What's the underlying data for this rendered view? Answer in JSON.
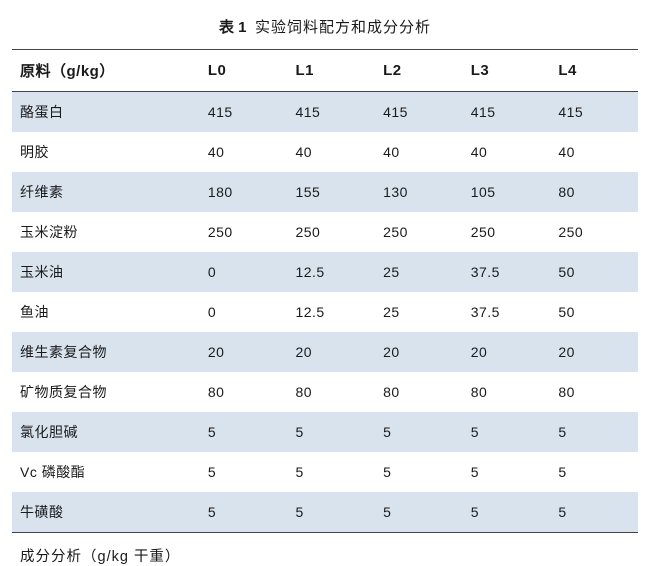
{
  "title": {
    "prefix": "表 1",
    "text": "实验饲料配方和成分分析"
  },
  "table": {
    "type": "table",
    "background_color": "#ffffff",
    "band_color": "#d9e3ee",
    "border_color": "#444444",
    "header_fontsize": 15,
    "cell_fontsize": 14,
    "columns": [
      "原料（g/kg）",
      "L0",
      "L1",
      "L2",
      "L3",
      "L4"
    ],
    "column_widths_pct": [
      30,
      14,
      14,
      14,
      14,
      14
    ],
    "rows": [
      [
        "酪蛋白",
        "415",
        "415",
        "415",
        "415",
        "415"
      ],
      [
        "明胶",
        "40",
        "40",
        "40",
        "40",
        "40"
      ],
      [
        "纤维素",
        "180",
        "155",
        "130",
        "105",
        "80"
      ],
      [
        "玉米淀粉",
        "250",
        "250",
        "250",
        "250",
        "250"
      ],
      [
        "玉米油",
        "0",
        "12.5",
        "25",
        "37.5",
        "50"
      ],
      [
        "鱼油",
        "0",
        "12.5",
        "25",
        "37.5",
        "50"
      ],
      [
        "维生素复合物",
        "20",
        "20",
        "20",
        "20",
        "20"
      ],
      [
        "矿物质复合物",
        "80",
        "80",
        "80",
        "80",
        "80"
      ],
      [
        "氯化胆碱",
        "5",
        "5",
        "5",
        "5",
        "5"
      ],
      [
        "Vc 磷酸酯",
        "5",
        "5",
        "5",
        "5",
        "5"
      ],
      [
        "牛磺酸",
        "5",
        "5",
        "5",
        "5",
        "5"
      ]
    ],
    "footer": "成分分析（g/kg 干重）"
  }
}
